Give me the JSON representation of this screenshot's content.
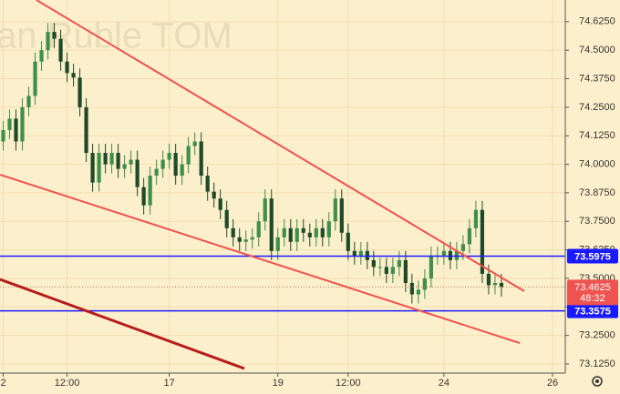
{
  "chart_data": {
    "type": "candlestick",
    "watermark": "an Ruble TOM",
    "x": [
      0,
      1,
      2,
      3,
      4,
      5,
      6,
      7,
      8,
      9,
      10,
      11,
      12,
      13,
      14,
      15,
      16,
      17,
      18,
      19,
      20,
      21,
      22,
      23,
      24,
      25,
      26,
      27,
      28,
      29,
      30,
      31,
      32,
      33,
      34,
      35,
      36,
      37,
      38,
      39,
      40,
      41,
      42,
      43,
      44,
      45,
      46,
      47,
      48,
      49,
      50,
      51,
      52,
      53,
      54,
      55,
      56,
      57,
      58,
      59,
      60,
      61,
      62,
      63,
      64,
      65,
      66,
      67,
      68,
      69,
      70,
      71,
      72,
      73,
      74,
      75,
      76,
      77,
      78
    ],
    "open": [
      74.1,
      74.15,
      74.2,
      74.1,
      74.25,
      74.3,
      74.45,
      74.5,
      74.58,
      74.55,
      74.45,
      74.4,
      74.38,
      74.25,
      74.05,
      73.92,
      74.05,
      74.0,
      74.05,
      73.98,
      74.0,
      74.02,
      73.9,
      73.82,
      73.95,
      73.98,
      74.02,
      74.05,
      73.95,
      74.0,
      74.08,
      74.1,
      73.95,
      73.88,
      73.85,
      73.8,
      73.72,
      73.68,
      73.66,
      73.67,
      73.68,
      73.75,
      73.85,
      73.62,
      73.68,
      73.72,
      73.66,
      73.72,
      73.7,
      73.68,
      73.72,
      73.68,
      73.75,
      73.85,
      73.7,
      73.62,
      73.6,
      73.62,
      73.58,
      73.55,
      73.55,
      73.52,
      73.55,
      73.58,
      73.48,
      73.43,
      73.45,
      73.5,
      73.6,
      73.6,
      73.62,
      73.58,
      73.62,
      73.65,
      73.72,
      73.8,
      73.52,
      73.47,
      73.48
    ],
    "high": [
      74.19,
      74.24,
      74.24,
      74.29,
      74.34,
      74.49,
      74.54,
      74.62,
      74.62,
      74.59,
      74.49,
      74.44,
      74.42,
      74.29,
      74.09,
      74.09,
      74.09,
      74.09,
      74.09,
      74.04,
      74.06,
      74.06,
      73.94,
      73.99,
      74.02,
      74.06,
      74.09,
      74.09,
      74.04,
      74.12,
      74.14,
      74.14,
      73.99,
      73.92,
      73.89,
      73.84,
      73.76,
      73.72,
      73.71,
      73.72,
      73.79,
      73.89,
      73.89,
      73.72,
      73.76,
      73.76,
      73.76,
      73.76,
      73.74,
      73.76,
      73.76,
      73.79,
      73.89,
      73.89,
      73.74,
      73.66,
      73.66,
      73.66,
      73.62,
      73.59,
      73.59,
      73.59,
      73.62,
      73.62,
      73.52,
      73.49,
      73.54,
      73.64,
      73.64,
      73.66,
      73.66,
      73.66,
      73.69,
      73.76,
      73.84,
      73.84,
      73.56,
      73.52,
      73.52
    ],
    "low": [
      74.06,
      74.11,
      74.06,
      74.06,
      74.21,
      74.26,
      74.41,
      74.46,
      74.51,
      74.41,
      74.36,
      74.34,
      74.21,
      74.01,
      73.88,
      73.88,
      73.96,
      73.96,
      73.94,
      73.94,
      73.96,
      73.86,
      73.78,
      73.78,
      73.91,
      73.94,
      73.98,
      73.91,
      73.91,
      73.96,
      74.04,
      73.91,
      73.84,
      73.81,
      73.76,
      73.68,
      73.64,
      73.62,
      73.62,
      73.63,
      73.64,
      73.71,
      73.58,
      73.58,
      73.64,
      73.62,
      73.62,
      73.66,
      73.64,
      73.64,
      73.64,
      73.64,
      73.71,
      73.66,
      73.58,
      73.56,
      73.56,
      73.54,
      73.51,
      73.51,
      73.48,
      73.48,
      73.51,
      73.44,
      73.39,
      73.39,
      73.41,
      73.46,
      73.56,
      73.56,
      73.54,
      73.54,
      73.58,
      73.61,
      73.68,
      73.48,
      73.43,
      73.43,
      73.42
    ],
    "close": [
      74.15,
      74.2,
      74.1,
      74.25,
      74.3,
      74.45,
      74.5,
      74.58,
      74.55,
      74.45,
      74.4,
      74.38,
      74.25,
      74.05,
      73.92,
      74.05,
      74.0,
      74.05,
      73.98,
      74.0,
      74.02,
      73.9,
      73.82,
      73.95,
      73.98,
      74.02,
      74.05,
      73.95,
      74.0,
      74.08,
      74.1,
      73.95,
      73.88,
      73.85,
      73.8,
      73.72,
      73.68,
      73.66,
      73.67,
      73.68,
      73.75,
      73.85,
      73.62,
      73.68,
      73.72,
      73.66,
      73.72,
      73.7,
      73.68,
      73.72,
      73.68,
      73.75,
      73.85,
      73.7,
      73.62,
      73.6,
      73.62,
      73.58,
      73.55,
      73.55,
      73.52,
      73.55,
      73.58,
      73.48,
      73.43,
      73.45,
      73.5,
      73.6,
      73.6,
      73.62,
      73.58,
      73.62,
      73.65,
      73.72,
      73.8,
      73.52,
      73.47,
      73.48,
      73.4625
    ],
    "up_color": "#3d8f4a",
    "down_color": "#1f4a2a",
    "xlim": [
      -0.5,
      88
    ],
    "xticks": [
      {
        "value": 0,
        "label": "2"
      },
      {
        "value": 10,
        "label": "12:00"
      },
      {
        "value": 26,
        "label": "17"
      },
      {
        "value": 43,
        "label": "19"
      },
      {
        "value": 54,
        "label": "12:00"
      },
      {
        "value": 69,
        "label": "24"
      },
      {
        "value": 86,
        "label": "26"
      }
    ],
    "ylim": [
      73.085,
      74.72
    ],
    "yticks": [
      {
        "value": 73.125,
        "label": "73.1250"
      },
      {
        "value": 73.25,
        "label": "73.2500"
      },
      {
        "value": 73.375,
        "label": "73.3750"
      },
      {
        "value": 73.5,
        "label": "73.5000"
      },
      {
        "value": 73.625,
        "label": "73.6250"
      },
      {
        "value": 73.75,
        "label": "73.7500"
      },
      {
        "value": 73.875,
        "label": "73.8750"
      },
      {
        "value": 74.0,
        "label": "74.0000"
      },
      {
        "value": 74.125,
        "label": "74.1250"
      },
      {
        "value": 74.25,
        "label": "74.2500"
      },
      {
        "value": 74.375,
        "label": "74.3750"
      },
      {
        "value": 74.5,
        "label": "74.5000"
      },
      {
        "value": 74.625,
        "label": "74.6250"
      }
    ],
    "grid": true,
    "price_lines": [
      {
        "value": 73.5975,
        "color": "#1a1aff"
      },
      {
        "value": 73.3575,
        "color": "#1a1aff"
      }
    ],
    "last_price": {
      "value": 73.4625,
      "countdown": "48:32",
      "color": "#ef5350"
    }
  }
}
